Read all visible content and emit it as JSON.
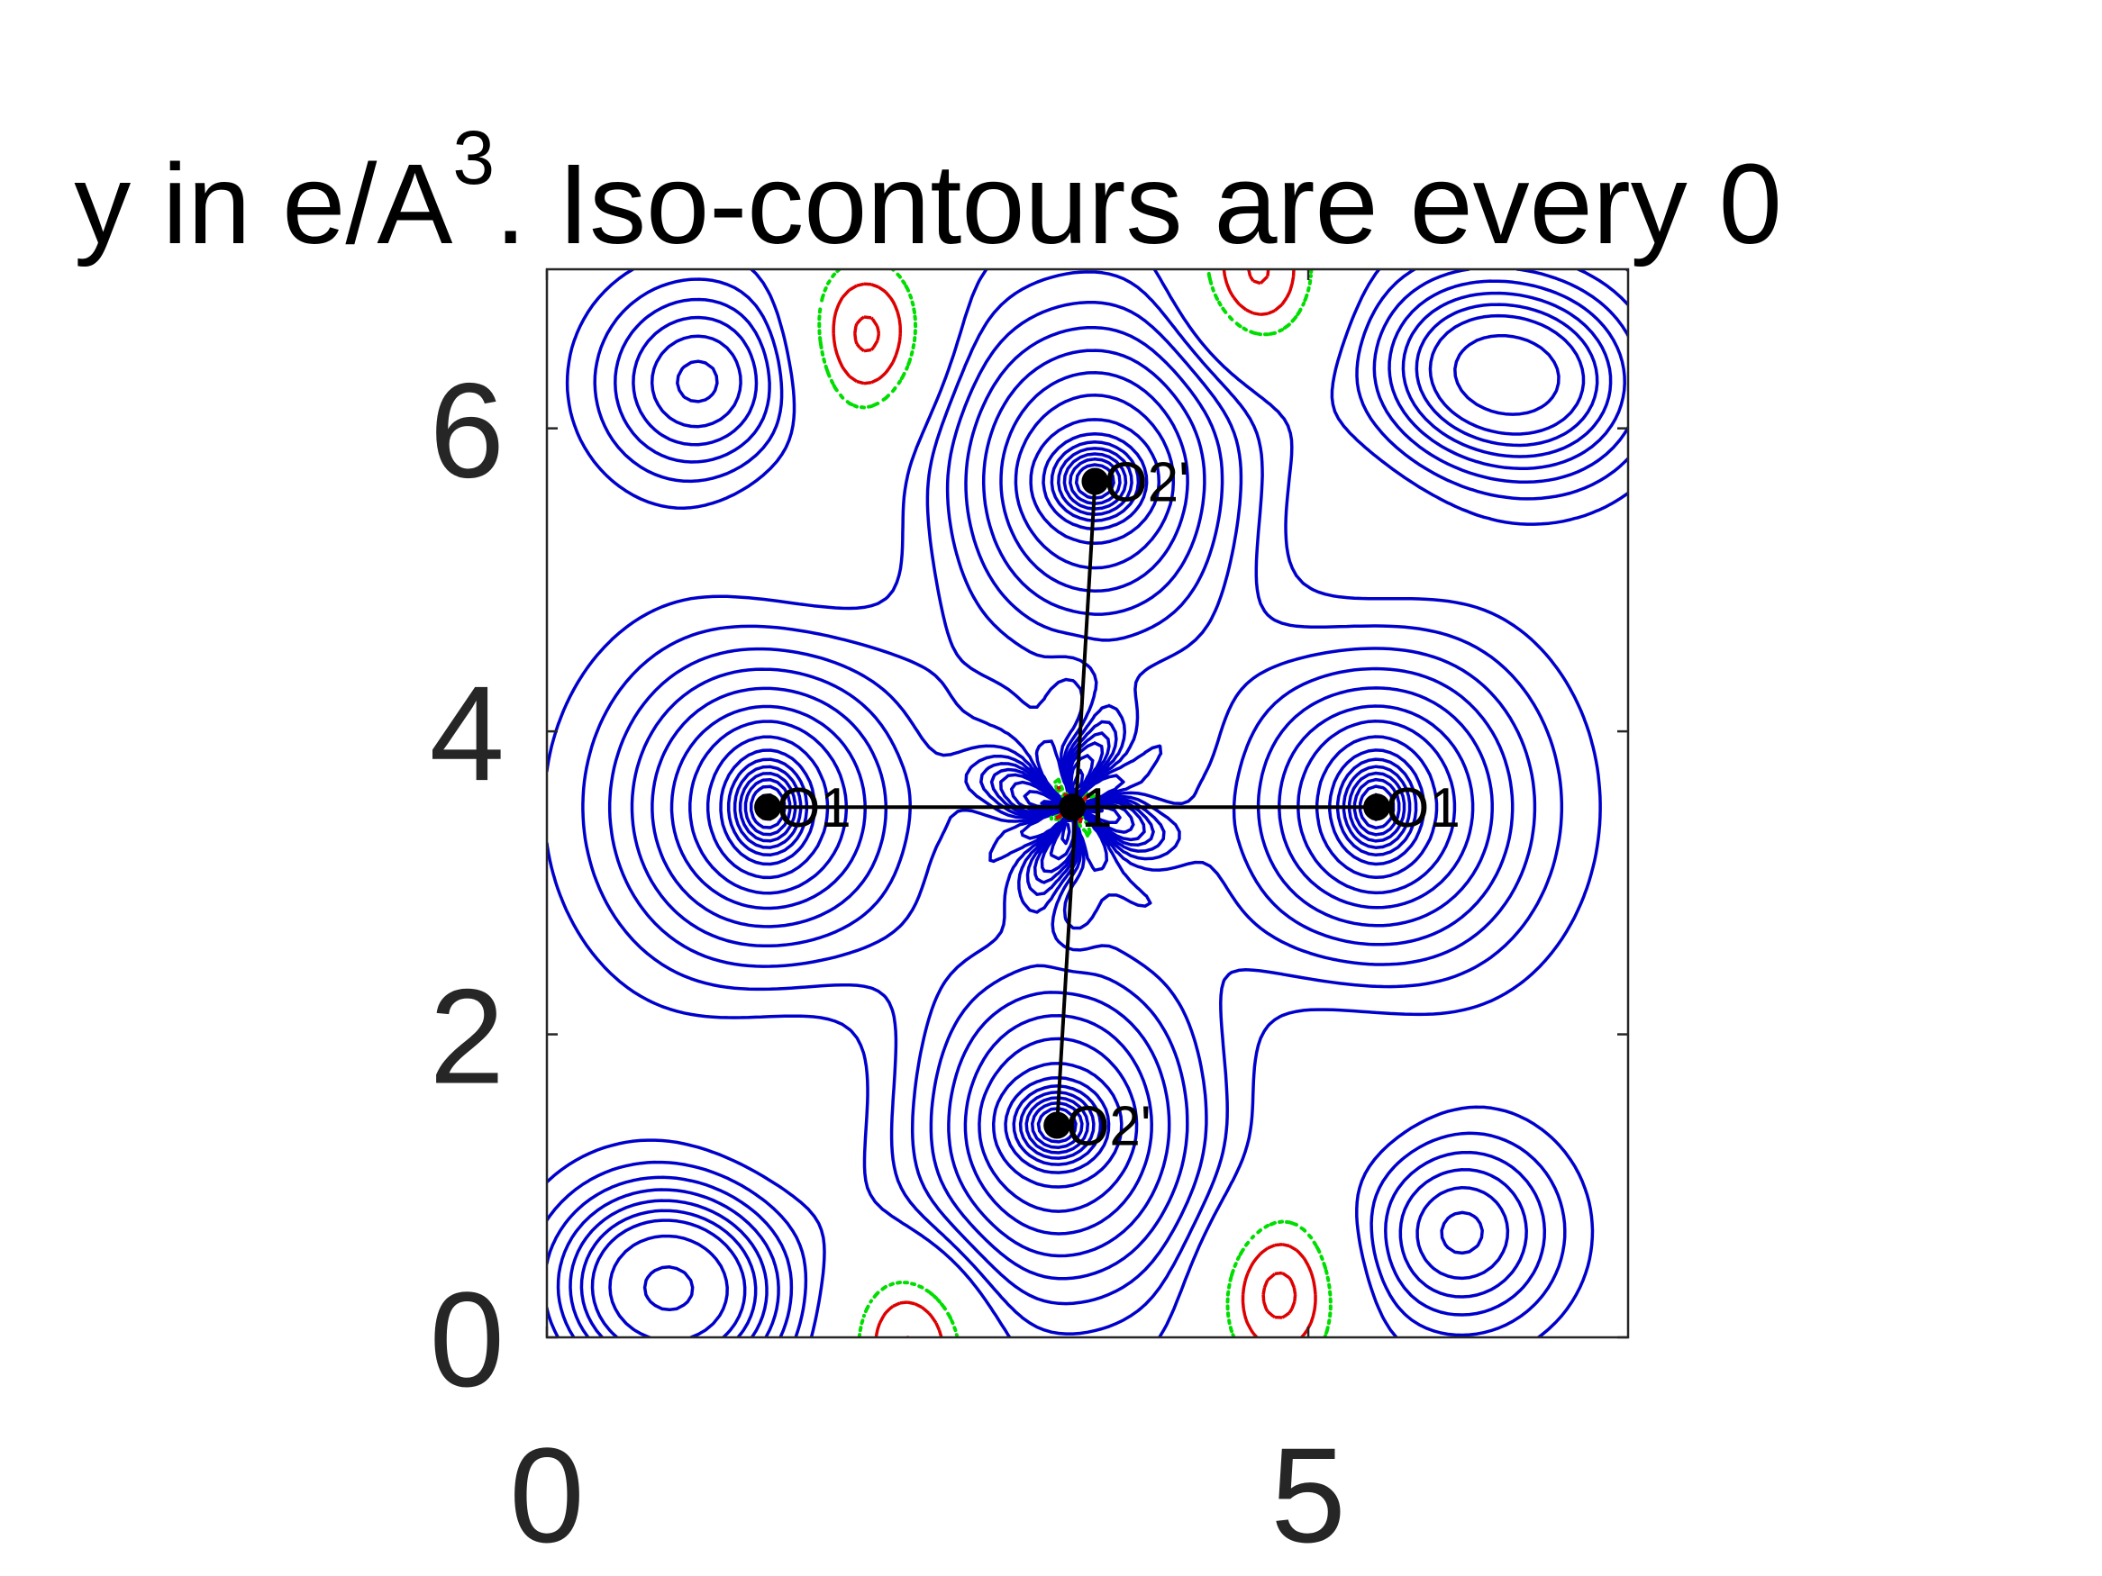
{
  "chart_data": {
    "type": "contour",
    "title": {
      "prefix": "y in e/A",
      "superscript": "3",
      "suffix": ". Iso-contours are every 0"
    },
    "xlabel": "",
    "ylabel": "",
    "xlim": [
      0,
      7.1
    ],
    "ylim": [
      0,
      7.05
    ],
    "xticks": [
      {
        "value": 0,
        "label": "0"
      },
      {
        "value": 5,
        "label": "5"
      }
    ],
    "yticks": [
      {
        "value": 0,
        "label": "0"
      },
      {
        "value": 2,
        "label": "2"
      },
      {
        "value": 4,
        "label": "4"
      },
      {
        "value": 6,
        "label": "6"
      }
    ],
    "contour_styles": {
      "positive": {
        "color": "#0000cc",
        "line": "solid"
      },
      "zero": {
        "color": "#00dd00",
        "line": "dotted"
      },
      "negative": {
        "color": "#dd0000",
        "line": "dashed"
      }
    },
    "atoms": [
      {
        "label": "1",
        "x": 3.45,
        "y": 3.5
      },
      {
        "label": "O1",
        "x": 1.45,
        "y": 3.5
      },
      {
        "label": "O1",
        "x": 5.45,
        "y": 3.5
      },
      {
        "label": "O2'",
        "x": 3.6,
        "y": 5.65
      },
      {
        "label": "O2'",
        "x": 3.35,
        "y": 1.4
      }
    ],
    "bonds": [
      {
        "from": [
          1.45,
          3.5
        ],
        "to": [
          5.45,
          3.5
        ]
      },
      {
        "from": [
          3.6,
          5.65
        ],
        "to": [
          3.35,
          1.4
        ]
      }
    ]
  }
}
